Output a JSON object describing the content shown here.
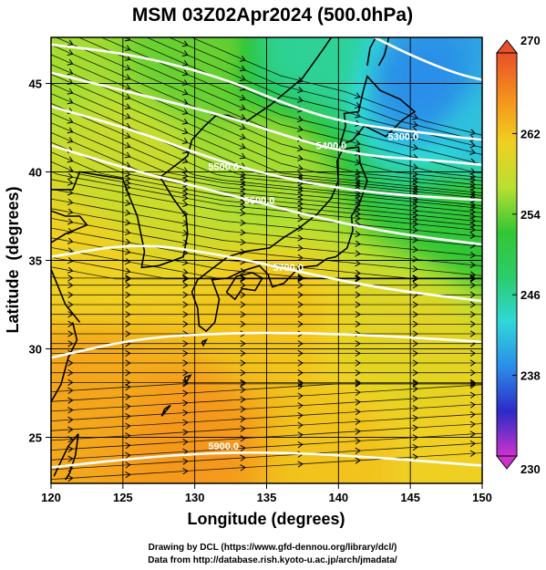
{
  "title": "MSM 03Z02Apr2024 (500.0hPa)",
  "footer": {
    "line1": "Drawing by DCL (https://www.gfd-dennou.org/library/dcl/)",
    "line2": "Data from http://database.rish.kyoto-u.ac.jp/arch/jmadata/"
  },
  "chart_data": {
    "type": "heatmap",
    "title": "MSM 03Z02Apr2024 (500.0hPa)",
    "xlabel": "Longitude (degrees)",
    "ylabel": "Latitude  (degrees)",
    "xlim": [
      120,
      150
    ],
    "ylim": [
      22.4,
      47.6
    ],
    "xticks": [
      120,
      125,
      130,
      135,
      140,
      145,
      150
    ],
    "yticks": [
      25,
      30,
      35,
      40,
      45
    ],
    "grid": true,
    "colorbar": {
      "min": 230,
      "max": 270,
      "ticks": [
        230,
        238,
        246,
        254,
        262,
        270
      ],
      "colors": [
        "#cc33cc",
        "#2b2bc8",
        "#2c8de8",
        "#2fd8d8",
        "#2ccc6a",
        "#33c633",
        "#b8e032",
        "#f0d020",
        "#f5901c",
        "#e8502a"
      ]
    },
    "heatmap_field": {
      "variable": "temperature (K)",
      "samples": [
        {
          "lon": 120,
          "lat": 47,
          "value": 256
        },
        {
          "lon": 130,
          "lat": 47,
          "value": 254
        },
        {
          "lon": 138,
          "lat": 47,
          "value": 246
        },
        {
          "lon": 146,
          "lat": 45,
          "value": 239
        },
        {
          "lon": 150,
          "lat": 42,
          "value": 242
        },
        {
          "lon": 150,
          "lat": 38,
          "value": 252
        },
        {
          "lon": 135,
          "lat": 40,
          "value": 256
        },
        {
          "lon": 125,
          "lat": 40,
          "value": 258
        },
        {
          "lon": 122,
          "lat": 35,
          "value": 261
        },
        {
          "lon": 135,
          "lat": 32,
          "value": 262
        },
        {
          "lon": 145,
          "lat": 30,
          "value": 260
        },
        {
          "lon": 122,
          "lat": 28,
          "value": 264
        },
        {
          "lon": 130,
          "lat": 25,
          "value": 265
        },
        {
          "lon": 140,
          "lat": 24,
          "value": 262
        },
        {
          "lon": 148,
          "lat": 24,
          "value": 261
        }
      ]
    },
    "contours": [
      {
        "label": "5900.0",
        "label_lon": 132,
        "label_lat": 24.3,
        "points": [
          [
            120,
            23.3
          ],
          [
            128,
            24.0
          ],
          [
            135,
            24.2
          ],
          [
            142,
            23.9
          ],
          [
            150,
            23.4
          ]
        ]
      },
      {
        "label": "",
        "label_lon": null,
        "label_lat": null,
        "points": [
          [
            120,
            29.5
          ],
          [
            126,
            30.6
          ],
          [
            132,
            30.9
          ],
          [
            138,
            30.9
          ],
          [
            144,
            30.7
          ],
          [
            150,
            30.4
          ]
        ]
      },
      {
        "label": "5700.0",
        "label_lon": 136.5,
        "label_lat": 34.4,
        "points": [
          [
            120,
            35.2
          ],
          [
            126,
            36.0
          ],
          [
            132,
            35.3
          ],
          [
            137,
            34.4
          ],
          [
            143,
            33.4
          ],
          [
            150,
            32.7
          ]
        ]
      },
      {
        "label": "5600.0",
        "label_lon": 134.5,
        "label_lat": 38.2,
        "points": [
          [
            120,
            41.5
          ],
          [
            126,
            40.0
          ],
          [
            132,
            38.8
          ],
          [
            138,
            37.5
          ],
          [
            144,
            36.5
          ],
          [
            150,
            35.9
          ]
        ]
      },
      {
        "label": "5500.0",
        "label_lon": 132,
        "label_lat": 40.1,
        "points": [
          [
            120,
            43.7
          ],
          [
            126,
            42.3
          ],
          [
            132,
            40.5
          ],
          [
            138,
            39.3
          ],
          [
            144,
            38.7
          ],
          [
            150,
            38.4
          ]
        ]
      },
      {
        "label": "5400.0",
        "label_lon": 139.5,
        "label_lat": 41.3,
        "points": [
          [
            120,
            45.6
          ],
          [
            126,
            44.4
          ],
          [
            132,
            43.2
          ],
          [
            138,
            41.6
          ],
          [
            142,
            40.9
          ],
          [
            146,
            40.7
          ],
          [
            150,
            40.4
          ]
        ]
      },
      {
        "label": "5300.0",
        "label_lon": 144.5,
        "label_lat": 41.8,
        "points": [
          [
            120,
            47.2
          ],
          [
            126,
            46.6
          ],
          [
            132,
            45.3
          ],
          [
            137,
            43.6
          ],
          [
            141,
            42.7
          ],
          [
            146,
            42.2
          ],
          [
            150,
            41.8
          ]
        ]
      },
      {
        "label": "",
        "label_lon": null,
        "label_lat": null,
        "points": [
          [
            142.5,
            47.6
          ],
          [
            145,
            46.6
          ],
          [
            148,
            45.6
          ],
          [
            150,
            45.2
          ]
        ]
      }
    ]
  }
}
